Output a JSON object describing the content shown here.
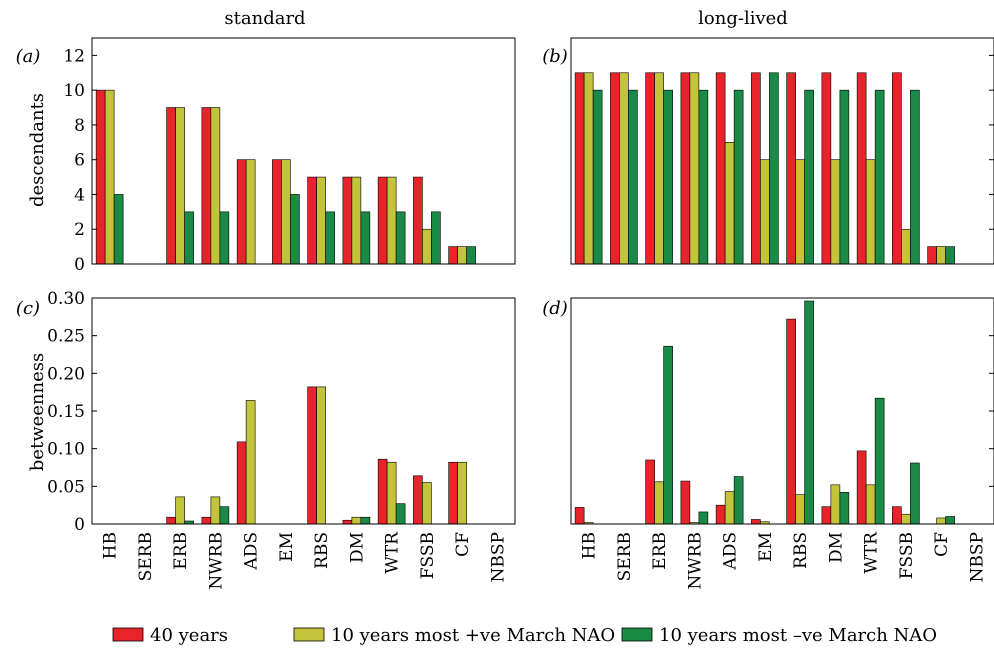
{
  "colors": {
    "forty": "#e8242b",
    "plus": "#c3c43c",
    "minus": "#1b8a46",
    "axis": "#000000"
  },
  "legend": [
    {
      "label": "40 years",
      "color": "#e8242b"
    },
    {
      "label": "10 years most +ve March NAO",
      "color": "#c3c43c"
    },
    {
      "label": "10 years most –ve March NAO",
      "color": "#1b8a46"
    }
  ],
  "chart_data": [
    {
      "type": "bar",
      "panel": "(a)",
      "title": "standard",
      "xlabel": "",
      "ylabel": "descendants",
      "ylim": [
        0,
        13
      ],
      "yticks": [
        0,
        2,
        4,
        6,
        8,
        10,
        12
      ],
      "ytick_labels": [
        "0",
        "2",
        "4",
        "6",
        "8",
        "10",
        "12"
      ],
      "categories": [
        "HB",
        "SERB",
        "ERB",
        "NWRB",
        "ADS",
        "EM",
        "RBS",
        "DM",
        "WTR",
        "FSSB",
        "CF",
        "NBSP"
      ],
      "series": [
        {
          "name": "40 years",
          "values": [
            10,
            0,
            9,
            9,
            6,
            6,
            5,
            5,
            5,
            5,
            1,
            0
          ]
        },
        {
          "name": "10 years most +ve March NAO",
          "values": [
            10,
            0,
            9,
            9,
            6,
            6,
            5,
            5,
            5,
            2,
            1,
            0
          ]
        },
        {
          "name": "10 years most –ve March NAO",
          "values": [
            4,
            0,
            3,
            3,
            0,
            4,
            3,
            3,
            3,
            3,
            1,
            0
          ]
        }
      ]
    },
    {
      "type": "bar",
      "panel": "(b)",
      "title": "long-lived",
      "xlabel": "",
      "ylabel": "",
      "ylim": [
        0,
        13
      ],
      "yticks": [
        0,
        2,
        4,
        6,
        8,
        10,
        12
      ],
      "ytick_labels": [],
      "categories": [
        "HB",
        "SERB",
        "ERB",
        "NWRB",
        "ADS",
        "EM",
        "RBS",
        "DM",
        "WTR",
        "FSSB",
        "CF",
        "NBSP"
      ],
      "series": [
        {
          "name": "40 years",
          "values": [
            11,
            11,
            11,
            11,
            11,
            11,
            11,
            11,
            11,
            11,
            1,
            0
          ]
        },
        {
          "name": "10 years most +ve March NAO",
          "values": [
            11,
            11,
            11,
            11,
            7,
            6,
            6,
            6,
            6,
            2,
            1,
            0
          ]
        },
        {
          "name": "10 years most –ve March NAO",
          "values": [
            10,
            10,
            10,
            10,
            10,
            11,
            10,
            10,
            10,
            10,
            1,
            0
          ]
        }
      ]
    },
    {
      "type": "bar",
      "panel": "(c)",
      "title": "",
      "xlabel": "",
      "ylabel": "betweenness",
      "ylim": [
        0,
        0.3
      ],
      "yticks": [
        0,
        0.05,
        0.1,
        0.15,
        0.2,
        0.25,
        0.3
      ],
      "ytick_labels": [
        "0",
        "0.05",
        "0.10",
        "0.15",
        "0.20",
        "0.25",
        "0.30"
      ],
      "categories": [
        "HB",
        "SERB",
        "ERB",
        "NWRB",
        "ADS",
        "EM",
        "RBS",
        "DM",
        "WTR",
        "FSSB",
        "CF",
        "NBSP"
      ],
      "series": [
        {
          "name": "40 years",
          "values": [
            0,
            0,
            0.009,
            0.009,
            0.109,
            0,
            0.182,
            0.005,
            0.086,
            0.064,
            0.082,
            0
          ]
        },
        {
          "name": "10 years most +ve March NAO",
          "values": [
            0,
            0,
            0.036,
            0.036,
            0.164,
            0,
            0.182,
            0.009,
            0.082,
            0.055,
            0.082,
            0
          ]
        },
        {
          "name": "10 years most –ve March NAO",
          "values": [
            0,
            0,
            0.004,
            0.023,
            0,
            0,
            0,
            0.009,
            0.027,
            0,
            0,
            0
          ]
        }
      ]
    },
    {
      "type": "bar",
      "panel": "(d)",
      "title": "",
      "xlabel": "",
      "ylabel": "",
      "ylim": [
        0,
        0.3
      ],
      "yticks": [
        0,
        0.05,
        0.1,
        0.15,
        0.2,
        0.25,
        0.3
      ],
      "ytick_labels": [],
      "categories": [
        "HB",
        "SERB",
        "ERB",
        "NWRB",
        "ADS",
        "EM",
        "RBS",
        "DM",
        "WTR",
        "FSSB",
        "CF",
        "NBSP"
      ],
      "series": [
        {
          "name": "40 years",
          "values": [
            0.022,
            0,
            0.085,
            0.057,
            0.025,
            0.006,
            0.272,
            0.023,
            0.097,
            0.023,
            0,
            0
          ]
        },
        {
          "name": "10 years most +ve March NAO",
          "values": [
            0.002,
            0,
            0.056,
            0.002,
            0.043,
            0.003,
            0.039,
            0.052,
            0.052,
            0.013,
            0.008,
            0
          ]
        },
        {
          "name": "10 years most –ve March NAO",
          "values": [
            0,
            0,
            0.236,
            0.016,
            0.063,
            0,
            0.296,
            0.042,
            0.167,
            0.081,
            0.01,
            0
          ]
        }
      ]
    }
  ]
}
